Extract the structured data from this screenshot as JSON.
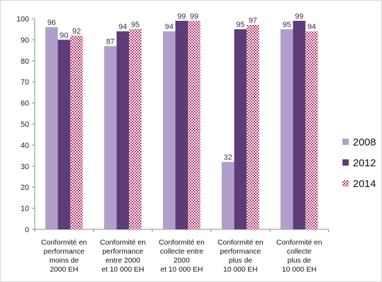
{
  "chart_data": {
    "type": "bar",
    "categories": [
      [
        "Conformité en",
        "performance",
        "moins de",
        "2000 EH"
      ],
      [
        "Conformité en",
        "performance",
        "entre 2000",
        "et 10 000 EH"
      ],
      [
        "Conformité en",
        "collecte entre",
        "2000",
        "et 10 000 EH"
      ],
      [
        "Conformité en",
        "performance",
        "plus de",
        "10 000 EH"
      ],
      [
        "Conformité en",
        "collecte",
        "plus de",
        "10 000 EH"
      ]
    ],
    "series": [
      {
        "name": "2008",
        "values": [
          96,
          87,
          94,
          32,
          95
        ],
        "color": "#b09fcc",
        "pattern": "solid"
      },
      {
        "name": "2012",
        "values": [
          90,
          94,
          99,
          95,
          99
        ],
        "color": "#5e3c78",
        "pattern": "solid"
      },
      {
        "name": "2014",
        "values": [
          92,
          95,
          99,
          97,
          94
        ],
        "color": "#b83a6e",
        "pattern": "checker"
      }
    ],
    "yticks": [
      0,
      10,
      20,
      30,
      40,
      50,
      60,
      70,
      80,
      90,
      100
    ],
    "ylim": [
      0,
      100
    ],
    "grid": false,
    "legend_position": "right"
  }
}
